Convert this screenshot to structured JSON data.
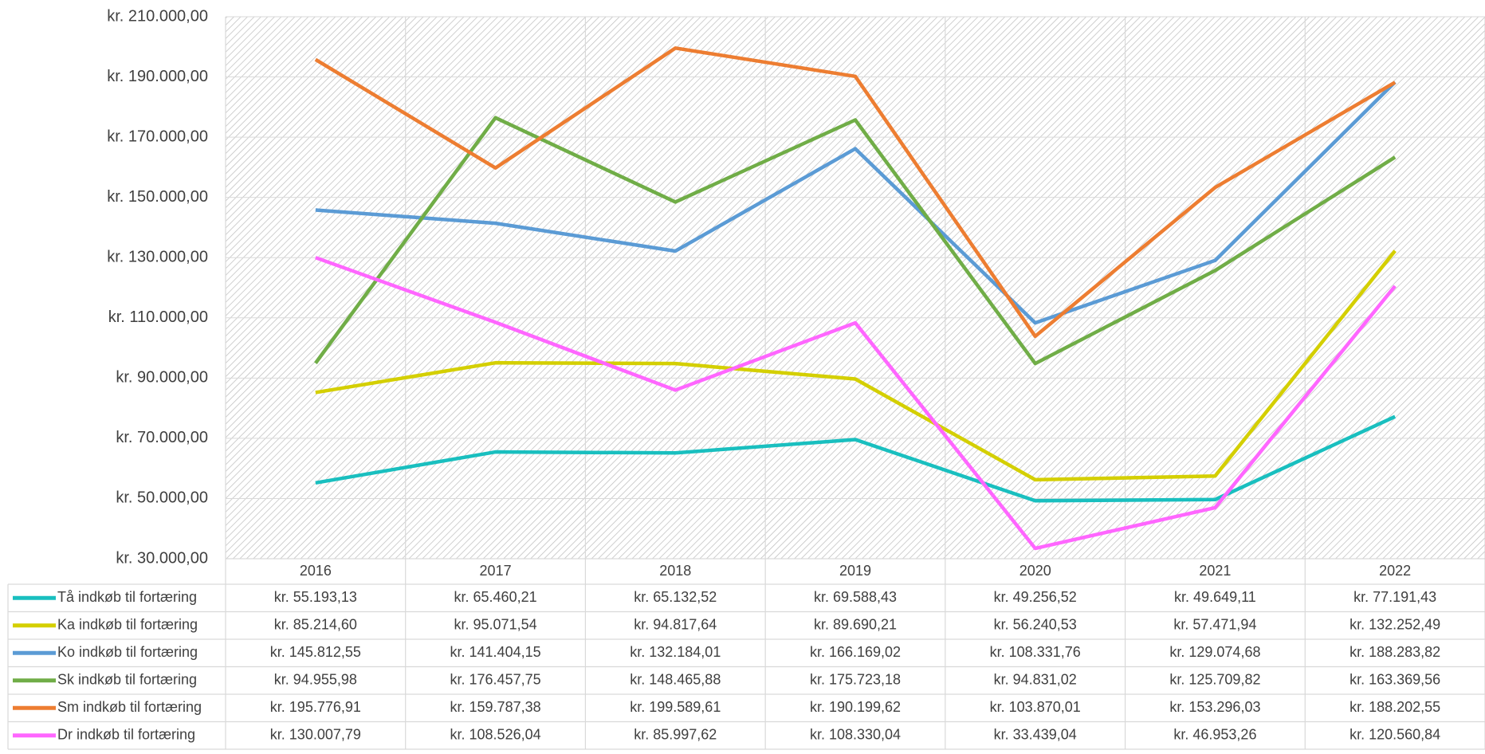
{
  "chart_data": {
    "type": "line",
    "categories": [
      "2016",
      "2017",
      "2018",
      "2019",
      "2020",
      "2021",
      "2022"
    ],
    "ylim": [
      30000,
      210000
    ],
    "yticks": [
      {
        "value": 30000,
        "label": "kr. 30.000,00"
      },
      {
        "value": 50000,
        "label": "kr. 50.000,00"
      },
      {
        "value": 70000,
        "label": "kr. 70.000,00"
      },
      {
        "value": 90000,
        "label": "kr. 90.000,00"
      },
      {
        "value": 110000,
        "label": "kr. 110.000,00"
      },
      {
        "value": 130000,
        "label": "kr. 130.000,00"
      },
      {
        "value": 150000,
        "label": "kr. 150.000,00"
      },
      {
        "value": 170000,
        "label": "kr. 170.000,00"
      },
      {
        "value": 190000,
        "label": "kr. 190.000,00"
      },
      {
        "value": 210000,
        "label": "kr. 210.000,00"
      }
    ],
    "grid": true,
    "series": [
      {
        "name": "Tå indkøb til fortæring",
        "color": "#19BFBF",
        "values": [
          55193.13,
          65460.21,
          65132.52,
          69588.43,
          49256.52,
          49649.11,
          77191.43
        ],
        "value_labels": [
          "kr. 55.193,13",
          "kr. 65.460,21",
          "kr. 65.132,52",
          "kr. 69.588,43",
          "kr. 49.256,52",
          "kr. 49.649,11",
          "kr. 77.191,43"
        ]
      },
      {
        "name": "Ka indkøb til fortæring",
        "color": "#D4CF00",
        "values": [
          85214.6,
          95071.54,
          94817.64,
          89690.21,
          56240.53,
          57471.94,
          132252.49
        ],
        "value_labels": [
          "kr. 85.214,60",
          "kr. 95.071,54",
          "kr. 94.817,64",
          "kr. 89.690,21",
          "kr. 56.240,53",
          "kr. 57.471,94",
          "kr. 132.252,49"
        ]
      },
      {
        "name": "Ko indkøb til fortæring",
        "color": "#5B9BD5",
        "values": [
          145812.55,
          141404.15,
          132184.01,
          166169.02,
          108331.76,
          129074.68,
          188283.82
        ],
        "value_labels": [
          "kr. 145.812,55",
          "kr. 141.404,15",
          "kr. 132.184,01",
          "kr. 166.169,02",
          "kr. 108.331,76",
          "kr. 129.074,68",
          "kr. 188.283,82"
        ]
      },
      {
        "name": "Sk indkøb til fortæring",
        "color": "#70AD47",
        "values": [
          94955.98,
          176457.75,
          148465.88,
          175723.18,
          94831.02,
          125709.82,
          163369.56
        ],
        "value_labels": [
          "kr. 94.955,98",
          "kr. 176.457,75",
          "kr. 148.465,88",
          "kr. 175.723,18",
          "kr. 94.831,02",
          "kr. 125.709,82",
          "kr. 163.369,56"
        ]
      },
      {
        "name": "Sm indkøb til fortæring",
        "color": "#ED7D31",
        "values": [
          195776.91,
          159787.38,
          199589.61,
          190199.62,
          103870.01,
          153296.03,
          188202.55
        ],
        "value_labels": [
          "kr. 195.776,91",
          "kr. 159.787,38",
          "kr. 199.589,61",
          "kr. 190.199,62",
          "kr. 103.870,01",
          "kr. 153.296,03",
          "kr. 188.202,55"
        ]
      },
      {
        "name": "Dr indkøb til fortæring",
        "color": "#FF66FF",
        "values": [
          130007.79,
          108526.04,
          85997.62,
          108330.04,
          33439.04,
          46953.26,
          120560.84
        ],
        "value_labels": [
          "kr. 130.007,79",
          "kr. 108.526,04",
          "kr. 85.997,62",
          "kr. 108.330,04",
          "kr. 33.439,04",
          "kr. 46.953,26",
          "kr. 120.560,84"
        ]
      }
    ]
  }
}
